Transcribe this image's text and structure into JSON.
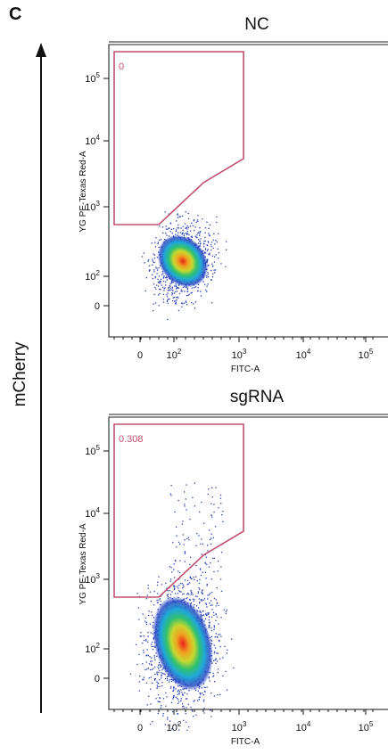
{
  "panel_label": "C",
  "y_axis_label": "mCherry",
  "plots": [
    {
      "title": "NC",
      "gate_value": "0",
      "y_label": "YG PE-Texas Red-A",
      "x_label": "FITC-A",
      "y_ticks": [
        {
          "base": "10",
          "exp": "5"
        },
        {
          "base": "10",
          "exp": "4"
        },
        {
          "base": "10",
          "exp": "3"
        },
        {
          "base": "10",
          "exp": "2"
        },
        {
          "base": "0"
        }
      ],
      "x_ticks": [
        {
          "base": "0"
        },
        {
          "base": "10",
          "exp": "2"
        },
        {
          "base": "10",
          "exp": "3"
        },
        {
          "base": "10",
          "exp": "4"
        },
        {
          "base": "10",
          "exp": "5"
        }
      ]
    },
    {
      "title": "sgRNA",
      "gate_value": "0.308",
      "y_label": "YG PE-Texas Red-A",
      "x_label": "FITC-A",
      "y_ticks": [
        {
          "base": "10",
          "exp": "5"
        },
        {
          "base": "10",
          "exp": "4"
        },
        {
          "base": "10",
          "exp": "3"
        },
        {
          "base": "10",
          "exp": "2"
        },
        {
          "base": "0"
        }
      ],
      "x_ticks": [
        {
          "base": "0"
        },
        {
          "base": "10",
          "exp": "2"
        },
        {
          "base": "10",
          "exp": "3"
        },
        {
          "base": "10",
          "exp": "4"
        },
        {
          "base": "10",
          "exp": "5"
        }
      ]
    }
  ]
}
